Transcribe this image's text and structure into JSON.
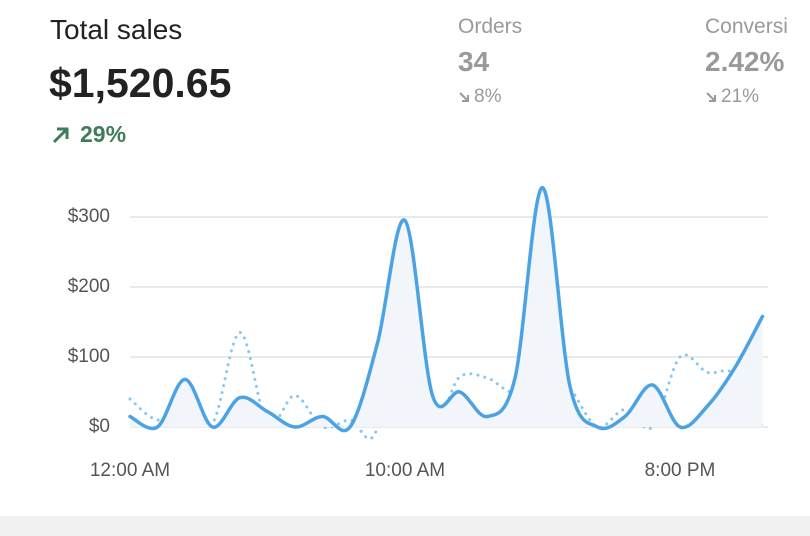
{
  "header": {
    "title": "Total sales",
    "value": "$1,520.65",
    "change": "29%",
    "metrics": [
      {
        "label": "Orders",
        "value": "34",
        "change": "8%"
      },
      {
        "label": "Conversi",
        "value": "2.42%",
        "change": "21%"
      }
    ]
  },
  "chart_data": {
    "type": "line",
    "categories": [
      "12:00 AM",
      null,
      null,
      null,
      null,
      null,
      null,
      null,
      null,
      null,
      "10:00 AM",
      null,
      null,
      null,
      null,
      null,
      null,
      null,
      null,
      null,
      "8:00 PM",
      null,
      null,
      null
    ],
    "series": [
      {
        "color": "#4ba3e3",
        "style": "solid",
        "values": [
          15,
          0,
          68,
          0,
          42,
          22,
          0,
          15,
          0,
          120,
          295,
          45,
          50,
          15,
          70,
          342,
          58,
          0,
          15,
          60,
          0,
          30,
          85,
          158
        ]
      },
      {
        "color": "#8cc6ee",
        "style": "dotted",
        "values": [
          40,
          10,
          28,
          5,
          135,
          5,
          45,
          0,
          10,
          0,
          268,
          20,
          72,
          70,
          50,
          90,
          55,
          0,
          25,
          0,
          100,
          78,
          75,
          0
        ]
      }
    ],
    "ylim": [
      0,
      350
    ],
    "yticks": [
      {
        "value": 0,
        "label": "$0"
      },
      {
        "value": 100,
        "label": "$100"
      },
      {
        "value": 200,
        "label": "$200"
      },
      {
        "value": 300,
        "label": "$300"
      }
    ],
    "grid": true
  }
}
